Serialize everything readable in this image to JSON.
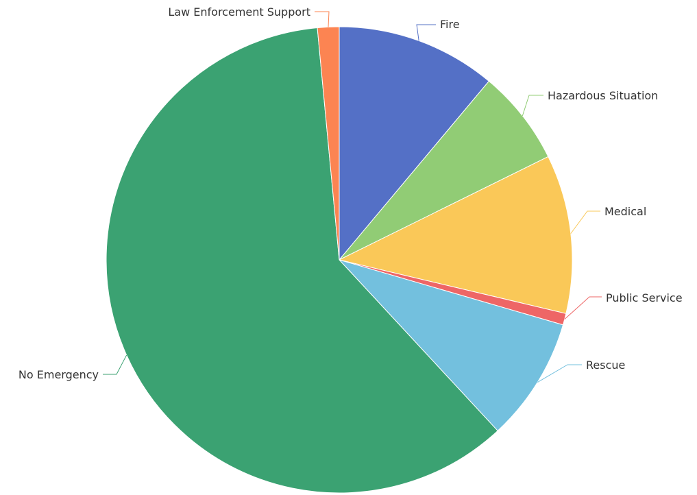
{
  "chart_data": {
    "type": "pie",
    "title": "",
    "legend": "none",
    "slices": [
      {
        "label": "Fire",
        "value": 11.1,
        "color": "#5470c6"
      },
      {
        "label": "Hazardous Situation",
        "value": 6.6,
        "color": "#91cc75"
      },
      {
        "label": "Medical",
        "value": 11.0,
        "color": "#fac858"
      },
      {
        "label": "Public Service",
        "value": 0.8,
        "color": "#ee6666"
      },
      {
        "label": "Rescue",
        "value": 8.6,
        "color": "#73c0de"
      },
      {
        "label": "No Emergency",
        "value": 60.4,
        "color": "#3ba272"
      },
      {
        "label": "Law Enforcement Support",
        "value": 1.5,
        "color": "#fc8452"
      }
    ]
  }
}
